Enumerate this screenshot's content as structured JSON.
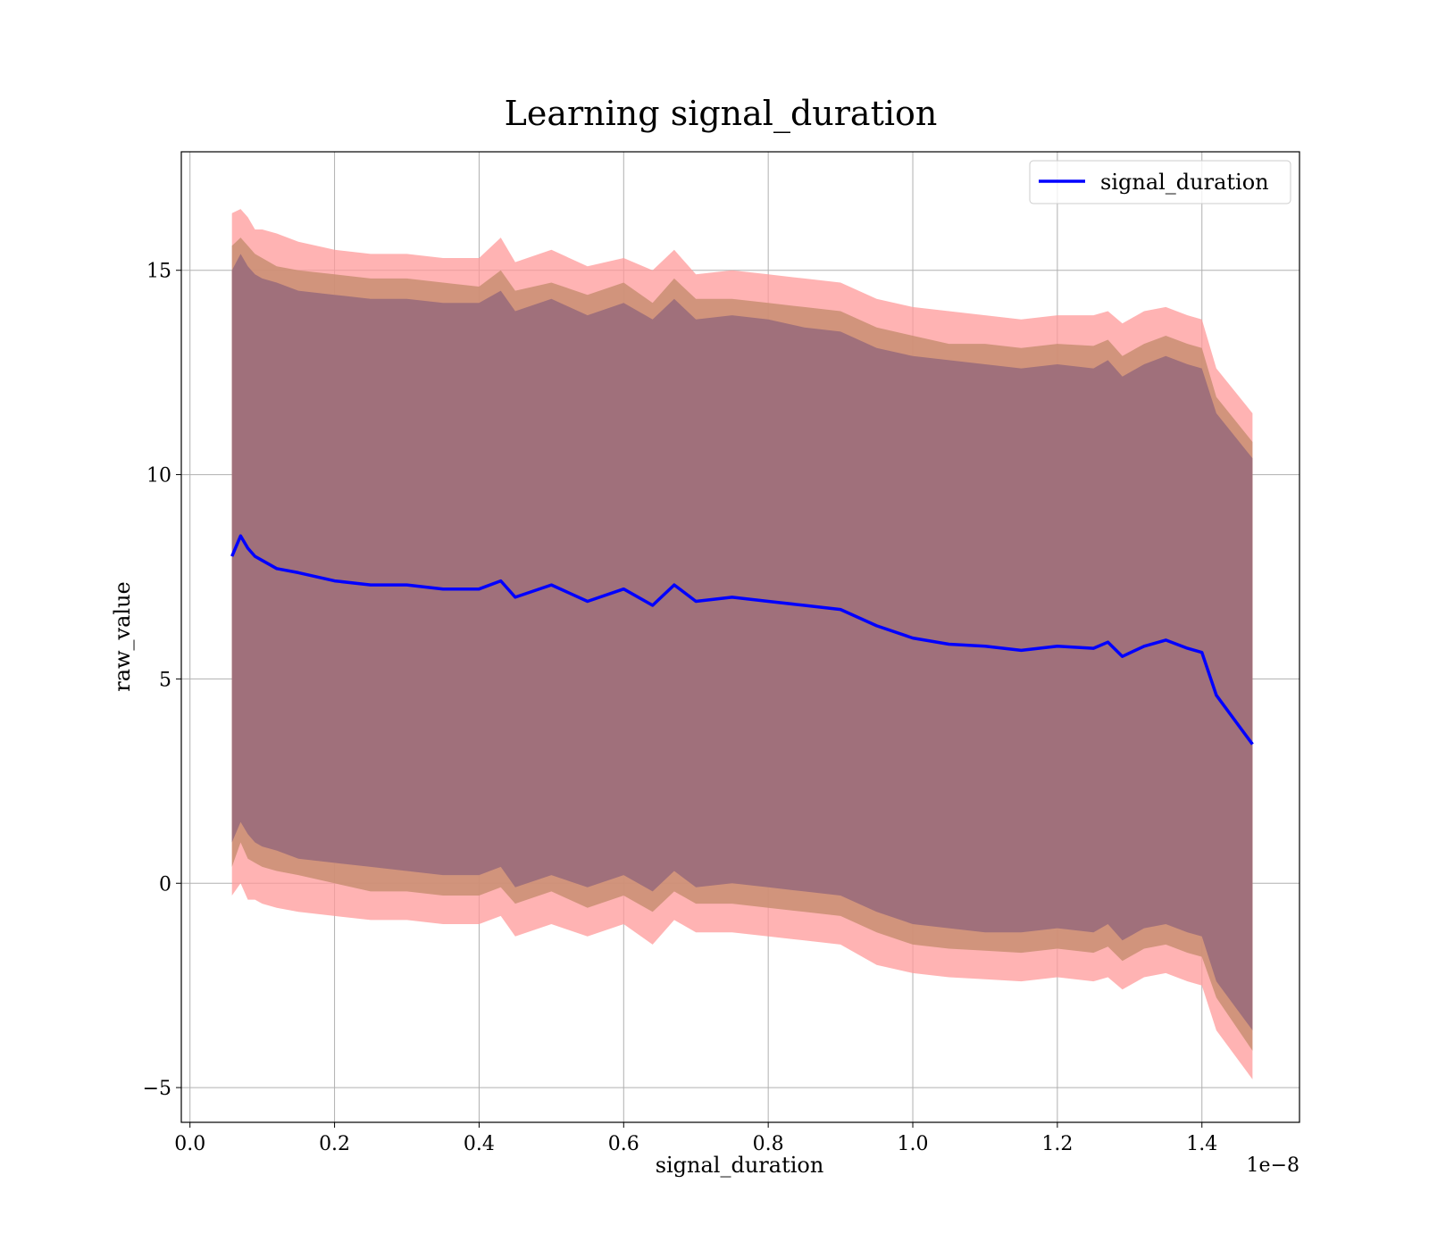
{
  "chart_data": {
    "type": "area",
    "title": "Learning signal_duration",
    "xlabel": "signal_duration",
    "ylabel": "raw_value",
    "x_offset_label": "1e−8",
    "x_scale": 1e-08,
    "xlim": [
      -0.012,
      1.535
    ],
    "ylim": [
      -5.85,
      17.9
    ],
    "x_ticks": [
      0.0,
      0.2,
      0.4,
      0.6,
      0.8,
      1.0,
      1.2,
      1.4
    ],
    "x_tick_labels": [
      "0.0",
      "0.2",
      "0.4",
      "0.6",
      "0.8",
      "1.0",
      "1.2",
      "1.4"
    ],
    "y_ticks": [
      -5,
      0,
      5,
      10,
      15
    ],
    "y_tick_labels": [
      "−5",
      "0",
      "5",
      "10",
      "15"
    ],
    "grid": true,
    "legend": {
      "position": "top-right",
      "entries": [
        "signal_duration"
      ]
    },
    "colors": {
      "mean": "#0000ff",
      "band_outer": "#ff9999",
      "band_mid": "#c98e72",
      "band_inner": "#a0707b",
      "grid": "#b0b0b0"
    },
    "x": [
      0.058,
      0.07,
      0.08,
      0.09,
      0.1,
      0.12,
      0.15,
      0.2,
      0.25,
      0.3,
      0.35,
      0.4,
      0.43,
      0.45,
      0.5,
      0.55,
      0.6,
      0.64,
      0.67,
      0.7,
      0.75,
      0.8,
      0.85,
      0.9,
      0.95,
      1.0,
      1.05,
      1.1,
      1.15,
      1.2,
      1.25,
      1.27,
      1.29,
      1.32,
      1.35,
      1.38,
      1.4,
      1.42,
      1.47
    ],
    "series": [
      {
        "name": "signal_duration",
        "values": [
          8.0,
          8.5,
          8.2,
          8.0,
          7.9,
          7.7,
          7.6,
          7.4,
          7.3,
          7.3,
          7.2,
          7.2,
          7.4,
          7.0,
          7.3,
          6.9,
          7.2,
          6.8,
          7.3,
          6.9,
          7.0,
          6.9,
          6.8,
          6.7,
          6.3,
          6.0,
          5.85,
          5.8,
          5.7,
          5.8,
          5.75,
          5.9,
          5.55,
          5.8,
          5.95,
          5.75,
          5.65,
          4.6,
          3.4
        ]
      }
    ],
    "bands": [
      {
        "upper": [
          16.4,
          16.5,
          16.3,
          16.0,
          16.0,
          15.9,
          15.7,
          15.5,
          15.4,
          15.4,
          15.3,
          15.3,
          15.8,
          15.2,
          15.5,
          15.1,
          15.3,
          15.0,
          15.5,
          14.9,
          15.0,
          14.9,
          14.8,
          14.7,
          14.3,
          14.1,
          14.0,
          13.9,
          13.8,
          13.9,
          13.9,
          14.0,
          13.7,
          14.0,
          14.1,
          13.9,
          13.8,
          12.6,
          11.5
        ],
        "lower": [
          -0.3,
          0.0,
          -0.4,
          -0.4,
          -0.5,
          -0.6,
          -0.7,
          -0.8,
          -0.9,
          -0.9,
          -1.0,
          -1.0,
          -0.8,
          -1.3,
          -1.0,
          -1.3,
          -1.0,
          -1.5,
          -0.9,
          -1.2,
          -1.2,
          -1.3,
          -1.4,
          -1.5,
          -2.0,
          -2.2,
          -2.3,
          -2.35,
          -2.4,
          -2.3,
          -2.4,
          -2.3,
          -2.6,
          -2.3,
          -2.2,
          -2.4,
          -2.5,
          -3.6,
          -4.8
        ]
      },
      {
        "upper": [
          15.6,
          15.8,
          15.6,
          15.4,
          15.3,
          15.1,
          15.0,
          14.9,
          14.8,
          14.8,
          14.7,
          14.6,
          15.0,
          14.5,
          14.7,
          14.4,
          14.7,
          14.2,
          14.8,
          14.3,
          14.3,
          14.2,
          14.1,
          14.0,
          13.6,
          13.4,
          13.2,
          13.2,
          13.1,
          13.2,
          13.15,
          13.3,
          12.9,
          13.2,
          13.4,
          13.2,
          13.1,
          11.9,
          10.8
        ],
        "lower": [
          0.4,
          1.0,
          0.6,
          0.5,
          0.4,
          0.3,
          0.2,
          0.0,
          -0.2,
          -0.2,
          -0.3,
          -0.3,
          -0.1,
          -0.5,
          -0.2,
          -0.6,
          -0.3,
          -0.7,
          -0.2,
          -0.5,
          -0.5,
          -0.6,
          -0.7,
          -0.8,
          -1.2,
          -1.5,
          -1.6,
          -1.65,
          -1.7,
          -1.6,
          -1.7,
          -1.55,
          -1.9,
          -1.6,
          -1.5,
          -1.7,
          -1.8,
          -2.8,
          -4.1
        ]
      },
      {
        "upper": [
          15.0,
          15.4,
          15.1,
          14.9,
          14.8,
          14.7,
          14.5,
          14.4,
          14.3,
          14.3,
          14.2,
          14.2,
          14.5,
          14.0,
          14.3,
          13.9,
          14.2,
          13.8,
          14.3,
          13.8,
          13.9,
          13.8,
          13.6,
          13.5,
          13.1,
          12.9,
          12.8,
          12.7,
          12.6,
          12.7,
          12.6,
          12.8,
          12.4,
          12.7,
          12.9,
          12.7,
          12.6,
          11.5,
          10.4
        ],
        "lower": [
          1.0,
          1.5,
          1.2,
          1.0,
          0.9,
          0.8,
          0.6,
          0.5,
          0.4,
          0.3,
          0.2,
          0.2,
          0.4,
          -0.1,
          0.2,
          -0.1,
          0.2,
          -0.2,
          0.3,
          -0.1,
          0.0,
          -0.1,
          -0.2,
          -0.3,
          -0.7,
          -1.0,
          -1.1,
          -1.2,
          -1.2,
          -1.1,
          -1.2,
          -1.0,
          -1.4,
          -1.1,
          -1.0,
          -1.2,
          -1.3,
          -2.4,
          -3.6
        ]
      }
    ]
  }
}
